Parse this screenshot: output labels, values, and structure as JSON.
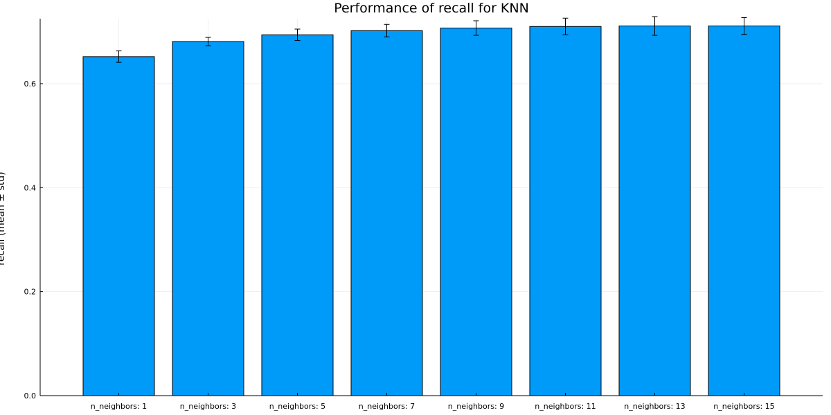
{
  "chart_data": {
    "type": "bar",
    "title": "Performance of recall for KNN",
    "xlabel": "",
    "ylabel": "recall (mean ± std)",
    "categories": [
      "n_neighbors: 1",
      "n_neighbors: 3",
      "n_neighbors: 5",
      "n_neighbors: 7",
      "n_neighbors: 9",
      "n_neighbors: 11",
      "n_neighbors: 13",
      "n_neighbors: 15"
    ],
    "values": [
      0.652,
      0.681,
      0.694,
      0.702,
      0.707,
      0.71,
      0.711,
      0.711
    ],
    "errors": [
      0.011,
      0.008,
      0.011,
      0.012,
      0.014,
      0.016,
      0.018,
      0.016
    ],
    "ylim": [
      0.0,
      0.725
    ],
    "yticks": [
      0.0,
      0.2,
      0.4,
      0.6
    ],
    "ytick_labels": [
      "0.0",
      "0.2",
      "0.4",
      "0.6"
    ],
    "grid": true,
    "legend": "none",
    "colors": {
      "bar": "#009af9",
      "bar_edge": "#000000",
      "grid": "#e6e6e6",
      "axis": "#000000"
    }
  }
}
